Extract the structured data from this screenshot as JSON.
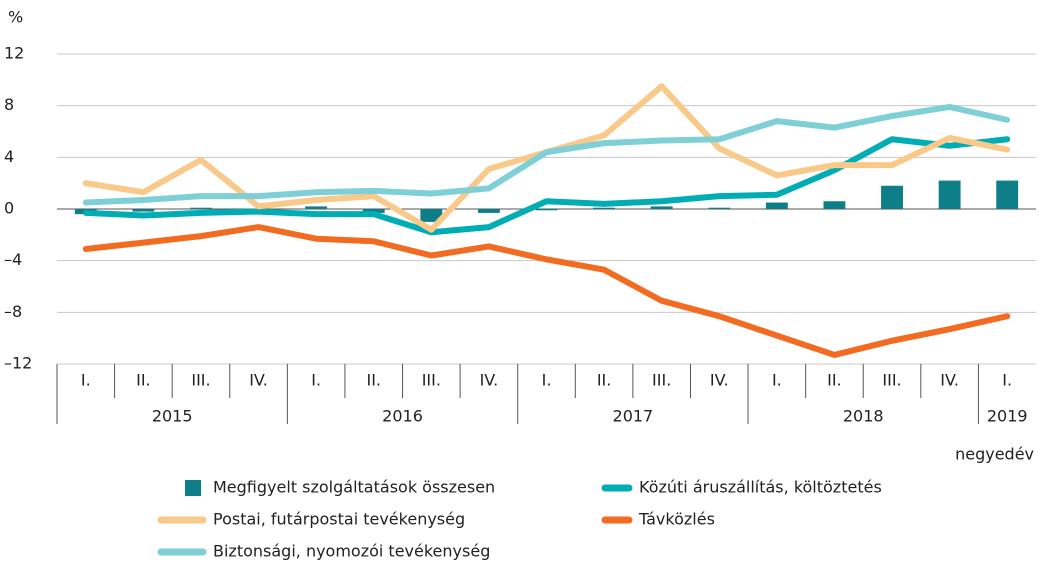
{
  "chart_data": {
    "type": "line",
    "y_label": "%",
    "x_label": "negyedév",
    "categories": [
      "I.",
      "II.",
      "III.",
      "IV.",
      "I.",
      "II.",
      "III.",
      "IV.",
      "I.",
      "II.",
      "III.",
      "IV.",
      "I.",
      "II.",
      "III.",
      "IV.",
      "I."
    ],
    "years": [
      "2015",
      "2016",
      "2017",
      "2018",
      "2019"
    ],
    "ylim": [
      -12,
      12
    ],
    "yticks": [
      {
        "value": -12,
        "label": "–12"
      },
      {
        "value": -8,
        "label": "–8"
      },
      {
        "value": -4,
        "label": "–4"
      },
      0,
      4,
      8,
      12
    ],
    "grid": true,
    "series": [
      {
        "name": "Megfigyelt szolgáltatások összesen",
        "kind": "bar",
        "color": "#0e7f89",
        "values": [
          -0.4,
          -0.2,
          0.1,
          -0.1,
          0.2,
          -0.3,
          -1.0,
          -0.3,
          -0.1,
          0.1,
          0.2,
          0.1,
          0.5,
          0.6,
          1.8,
          2.2,
          2.2
        ]
      },
      {
        "name": "Közúti áruszállítás, költöztetés",
        "kind": "line",
        "color": "#00adb5",
        "values": [
          -0.3,
          -0.5,
          -0.3,
          -0.2,
          -0.4,
          -0.4,
          -1.8,
          -1.4,
          0.6,
          0.4,
          0.6,
          1.0,
          1.1,
          3.0,
          5.4,
          4.9,
          5.4
        ]
      },
      {
        "name": "Postai, futárpostai tevékenység",
        "kind": "line",
        "color": "#f9c98a",
        "values": [
          2.0,
          1.3,
          3.8,
          0.2,
          0.7,
          1.0,
          -1.6,
          3.1,
          4.4,
          5.7,
          9.5,
          4.7,
          2.6,
          3.4,
          3.4,
          5.5,
          4.6
        ]
      },
      {
        "name": "Távközlés",
        "kind": "line",
        "color": "#f26b21",
        "values": [
          -3.1,
          -2.6,
          -2.1,
          -1.4,
          -2.3,
          -2.5,
          -3.6,
          -2.9,
          -3.9,
          -4.7,
          -7.1,
          -8.3,
          -9.8,
          -11.3,
          -10.2,
          -9.3,
          -8.3
        ]
      },
      {
        "name": "Biztonsági, nyomozói tevékenység",
        "kind": "line",
        "color": "#7fcfd6",
        "values": [
          0.5,
          0.7,
          1.0,
          1.0,
          1.3,
          1.4,
          1.2,
          1.6,
          4.4,
          5.1,
          5.3,
          5.4,
          6.8,
          6.3,
          7.2,
          7.9,
          6.9
        ]
      }
    ]
  }
}
